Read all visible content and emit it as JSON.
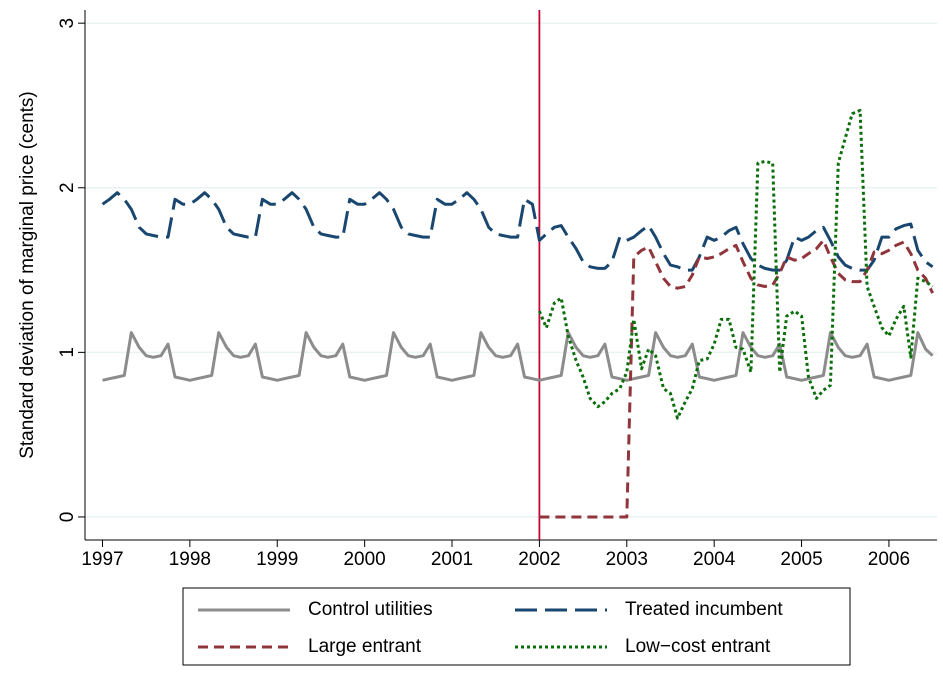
{
  "chart_data": {
    "type": "line",
    "y_label": "Standard deviation of marginal price (cents)",
    "xlim": [
      1996.8,
      2006.55
    ],
    "ylim": [
      -0.14,
      3.08
    ],
    "xticks": [
      1997,
      1998,
      1999,
      2000,
      2001,
      2002,
      2003,
      2004,
      2005,
      2006
    ],
    "yticks": [
      0,
      1,
      2,
      3
    ],
    "grid": true,
    "legend": "bottom",
    "vline": {
      "x": 2002,
      "color": "#c10534"
    },
    "x": [
      1997,
      1997.08,
      1997.17,
      1997.25,
      1997.33,
      1997.42,
      1997.5,
      1997.58,
      1997.67,
      1997.75,
      1997.83,
      1997.92,
      1998,
      1998.08,
      1998.17,
      1998.25,
      1998.33,
      1998.42,
      1998.5,
      1998.58,
      1998.67,
      1998.75,
      1998.83,
      1998.92,
      1999,
      1999.08,
      1999.17,
      1999.25,
      1999.33,
      1999.42,
      1999.5,
      1999.58,
      1999.67,
      1999.75,
      1999.83,
      1999.92,
      2000,
      2000.08,
      2000.17,
      2000.25,
      2000.33,
      2000.42,
      2000.5,
      2000.58,
      2000.67,
      2000.75,
      2000.83,
      2000.92,
      2001,
      2001.08,
      2001.17,
      2001.25,
      2001.33,
      2001.42,
      2001.5,
      2001.58,
      2001.67,
      2001.75,
      2001.83,
      2001.92,
      2002,
      2002.08,
      2002.17,
      2002.25,
      2002.33,
      2002.42,
      2002.5,
      2002.58,
      2002.67,
      2002.75,
      2002.83,
      2002.92,
      2003,
      2003.08,
      2003.17,
      2003.25,
      2003.33,
      2003.42,
      2003.5,
      2003.58,
      2003.67,
      2003.75,
      2003.83,
      2003.92,
      2004,
      2004.08,
      2004.17,
      2004.25,
      2004.33,
      2004.42,
      2004.5,
      2004.58,
      2004.67,
      2004.75,
      2004.83,
      2004.92,
      2005,
      2005.08,
      2005.17,
      2005.25,
      2005.33,
      2005.42,
      2005.5,
      2005.58,
      2005.67,
      2005.75,
      2005.83,
      2005.92,
      2006,
      2006.08,
      2006.17,
      2006.25,
      2006.33,
      2006.42,
      2006.5
    ],
    "series": [
      {
        "name": "Control utilities",
        "color": "#8c8c8c",
        "dash": "",
        "values": [
          0.83,
          0.84,
          0.85,
          0.86,
          1.12,
          1.03,
          0.98,
          0.97,
          0.98,
          1.05,
          0.85,
          0.84,
          0.83,
          0.84,
          0.85,
          0.86,
          1.12,
          1.03,
          0.98,
          0.97,
          0.98,
          1.05,
          0.85,
          0.84,
          0.83,
          0.84,
          0.85,
          0.86,
          1.12,
          1.03,
          0.98,
          0.97,
          0.98,
          1.05,
          0.85,
          0.84,
          0.83,
          0.84,
          0.85,
          0.86,
          1.12,
          1.03,
          0.98,
          0.97,
          0.98,
          1.05,
          0.85,
          0.84,
          0.83,
          0.84,
          0.85,
          0.86,
          1.12,
          1.03,
          0.98,
          0.97,
          0.98,
          1.05,
          0.85,
          0.84,
          0.83,
          0.84,
          0.85,
          0.86,
          1.12,
          1.03,
          0.98,
          0.97,
          0.98,
          1.05,
          0.85,
          0.84,
          0.83,
          0.84,
          0.85,
          0.86,
          1.12,
          1.03,
          0.98,
          0.97,
          0.98,
          1.05,
          0.85,
          0.84,
          0.83,
          0.84,
          0.85,
          0.86,
          1.12,
          1.03,
          0.98,
          0.97,
          0.98,
          1.05,
          0.85,
          0.84,
          0.83,
          0.84,
          0.85,
          0.86,
          1.12,
          1.03,
          0.98,
          0.97,
          0.98,
          1.05,
          0.85,
          0.84,
          0.83,
          0.84,
          0.85,
          0.86,
          1.12,
          1.02,
          0.98
        ]
      },
      {
        "name": "Treated incumbent",
        "color": "#1a476f",
        "dash": "22,8",
        "values": [
          1.9,
          1.93,
          1.97,
          1.93,
          1.87,
          1.76,
          1.72,
          1.71,
          1.7,
          1.7,
          1.93,
          1.9,
          1.9,
          1.93,
          1.97,
          1.93,
          1.87,
          1.76,
          1.72,
          1.71,
          1.7,
          1.7,
          1.93,
          1.9,
          1.9,
          1.93,
          1.97,
          1.93,
          1.87,
          1.76,
          1.72,
          1.71,
          1.7,
          1.7,
          1.93,
          1.9,
          1.9,
          1.93,
          1.97,
          1.93,
          1.87,
          1.76,
          1.72,
          1.71,
          1.7,
          1.7,
          1.93,
          1.9,
          1.9,
          1.93,
          1.97,
          1.93,
          1.87,
          1.76,
          1.72,
          1.71,
          1.7,
          1.7,
          1.93,
          1.9,
          1.68,
          1.72,
          1.76,
          1.77,
          1.7,
          1.63,
          1.55,
          1.52,
          1.51,
          1.51,
          1.55,
          1.7,
          1.68,
          1.7,
          1.74,
          1.77,
          1.7,
          1.6,
          1.53,
          1.52,
          1.5,
          1.5,
          1.58,
          1.7,
          1.68,
          1.7,
          1.74,
          1.76,
          1.66,
          1.57,
          1.53,
          1.51,
          1.5,
          1.5,
          1.56,
          1.7,
          1.68,
          1.7,
          1.74,
          1.76,
          1.68,
          1.58,
          1.53,
          1.51,
          1.5,
          1.5,
          1.56,
          1.7,
          1.7,
          1.75,
          1.77,
          1.78,
          1.62,
          1.55,
          1.52
        ]
      },
      {
        "name": "Large entrant",
        "color": "#90353b",
        "dash": "10,6",
        "values": [
          null,
          null,
          null,
          null,
          null,
          null,
          null,
          null,
          null,
          null,
          null,
          null,
          null,
          null,
          null,
          null,
          null,
          null,
          null,
          null,
          null,
          null,
          null,
          null,
          null,
          null,
          null,
          null,
          null,
          null,
          null,
          null,
          null,
          null,
          null,
          null,
          null,
          null,
          null,
          null,
          null,
          null,
          null,
          null,
          null,
          null,
          null,
          null,
          null,
          null,
          null,
          null,
          null,
          null,
          null,
          null,
          null,
          null,
          null,
          null,
          0,
          0,
          0,
          0,
          0,
          0,
          0,
          0,
          0,
          0,
          0,
          0,
          0,
          1.58,
          1.62,
          1.64,
          1.55,
          1.45,
          1.4,
          1.39,
          1.4,
          1.47,
          1.58,
          1.57,
          1.58,
          1.6,
          1.63,
          1.65,
          1.55,
          1.45,
          1.41,
          1.4,
          1.41,
          1.48,
          1.58,
          1.56,
          1.57,
          1.6,
          1.63,
          1.68,
          1.58,
          1.48,
          1.44,
          1.43,
          1.43,
          1.5,
          1.61,
          1.6,
          1.62,
          1.65,
          1.67,
          1.6,
          1.5,
          1.45,
          1.36
        ]
      },
      {
        "name": "Low−cost entrant",
        "color": "#0b6e0b",
        "dash": "3,3",
        "values": [
          null,
          null,
          null,
          null,
          null,
          null,
          null,
          null,
          null,
          null,
          null,
          null,
          null,
          null,
          null,
          null,
          null,
          null,
          null,
          null,
          null,
          null,
          null,
          null,
          null,
          null,
          null,
          null,
          null,
          null,
          null,
          null,
          null,
          null,
          null,
          null,
          null,
          null,
          null,
          null,
          null,
          null,
          null,
          null,
          null,
          null,
          null,
          null,
          null,
          null,
          null,
          null,
          null,
          null,
          null,
          null,
          null,
          null,
          null,
          null,
          1.25,
          1.15,
          1.3,
          1.33,
          1.1,
          0.95,
          0.85,
          0.72,
          0.67,
          0.7,
          0.75,
          0.78,
          0.88,
          1.2,
          0.9,
          1.02,
          0.98,
          0.78,
          0.75,
          0.6,
          0.7,
          0.78,
          0.95,
          0.96,
          1.05,
          1.2,
          1.2,
          1.03,
          1.02,
          0.88,
          2.15,
          2.16,
          2.15,
          0.88,
          1.22,
          1.25,
          1.22,
          0.85,
          0.72,
          0.77,
          0.8,
          2.15,
          2.3,
          2.45,
          2.47,
          1.4,
          1.28,
          1.15,
          1.1,
          1.2,
          1.28,
          0.97,
          1.45,
          1.43,
          1.4
        ]
      }
    ]
  }
}
